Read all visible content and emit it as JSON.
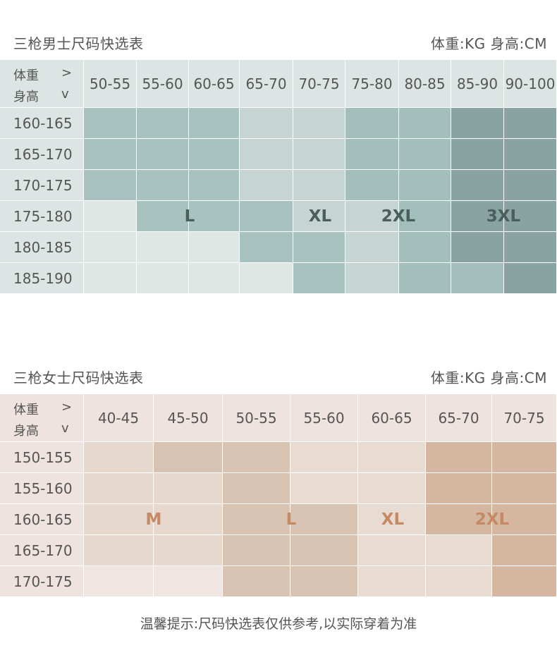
{
  "men": {
    "title": "三枪男士尺码快选表",
    "unit": "体重:KG 身高:CM",
    "corner_weight": "体重",
    "corner_weight_arrow": ">",
    "corner_height": "身高",
    "corner_height_arrow": "v",
    "weights": [
      "50-55",
      "55-60",
      "60-65",
      "65-70",
      "70-75",
      "75-80",
      "80-85",
      "85-90",
      "90-100"
    ],
    "heights": [
      "160-165",
      "165-170",
      "170-175",
      "175-180",
      "180-185",
      "185-190"
    ],
    "sizes": [
      "L",
      "XL",
      "2XL",
      "3XL"
    ],
    "size_grid": [
      [
        1,
        1,
        1,
        2,
        2,
        3,
        3,
        4,
        4
      ],
      [
        1,
        1,
        1,
        2,
        2,
        3,
        3,
        4,
        4
      ],
      [
        1,
        1,
        1,
        2,
        2,
        3,
        3,
        4,
        4
      ],
      [
        0,
        1,
        1,
        1,
        2,
        2,
        3,
        4,
        4
      ],
      [
        0,
        0,
        0,
        1,
        1,
        2,
        3,
        4,
        4
      ],
      [
        0,
        0,
        0,
        0,
        1,
        2,
        3,
        3,
        4
      ]
    ],
    "colors": {
      "header": "#dce5e3",
      "shades": [
        "#dfe7e5",
        "#a8c3bf",
        "#c6d5d2",
        "#a3bfbb",
        "#88a3a1"
      ],
      "size_text": "#4a5e5c"
    }
  },
  "women": {
    "title": "三枪女士尺码快选表",
    "unit": "体重:KG 身高:CM",
    "corner_weight": "体重",
    "corner_weight_arrow": ">",
    "corner_height": "身高",
    "corner_height_arrow": "v",
    "weights": [
      "40-45",
      "45-50",
      "50-55",
      "55-60",
      "60-65",
      "65-70",
      "70-75"
    ],
    "heights": [
      "150-155",
      "155-160",
      "160-165",
      "165-170",
      "170-175"
    ],
    "sizes": [
      "M",
      "L",
      "XL",
      "2XL"
    ],
    "size_grid": [
      [
        1,
        2,
        2,
        3,
        3,
        4,
        4
      ],
      [
        1,
        1,
        2,
        3,
        3,
        4,
        4
      ],
      [
        1,
        1,
        2,
        2,
        3,
        4,
        4
      ],
      [
        1,
        1,
        2,
        2,
        3,
        3,
        4
      ],
      [
        0,
        0,
        2,
        2,
        3,
        3,
        4
      ]
    ],
    "colors": {
      "header": "#eee3de",
      "shades": [
        "#efe5e1",
        "#e6d8cd",
        "#d8c2b2",
        "#e8dbd2",
        "#d5b6a0"
      ],
      "size_text": "#c58a63"
    }
  },
  "footer": "温馨提示:尺码快选表仅供参考,以实际穿着为准"
}
